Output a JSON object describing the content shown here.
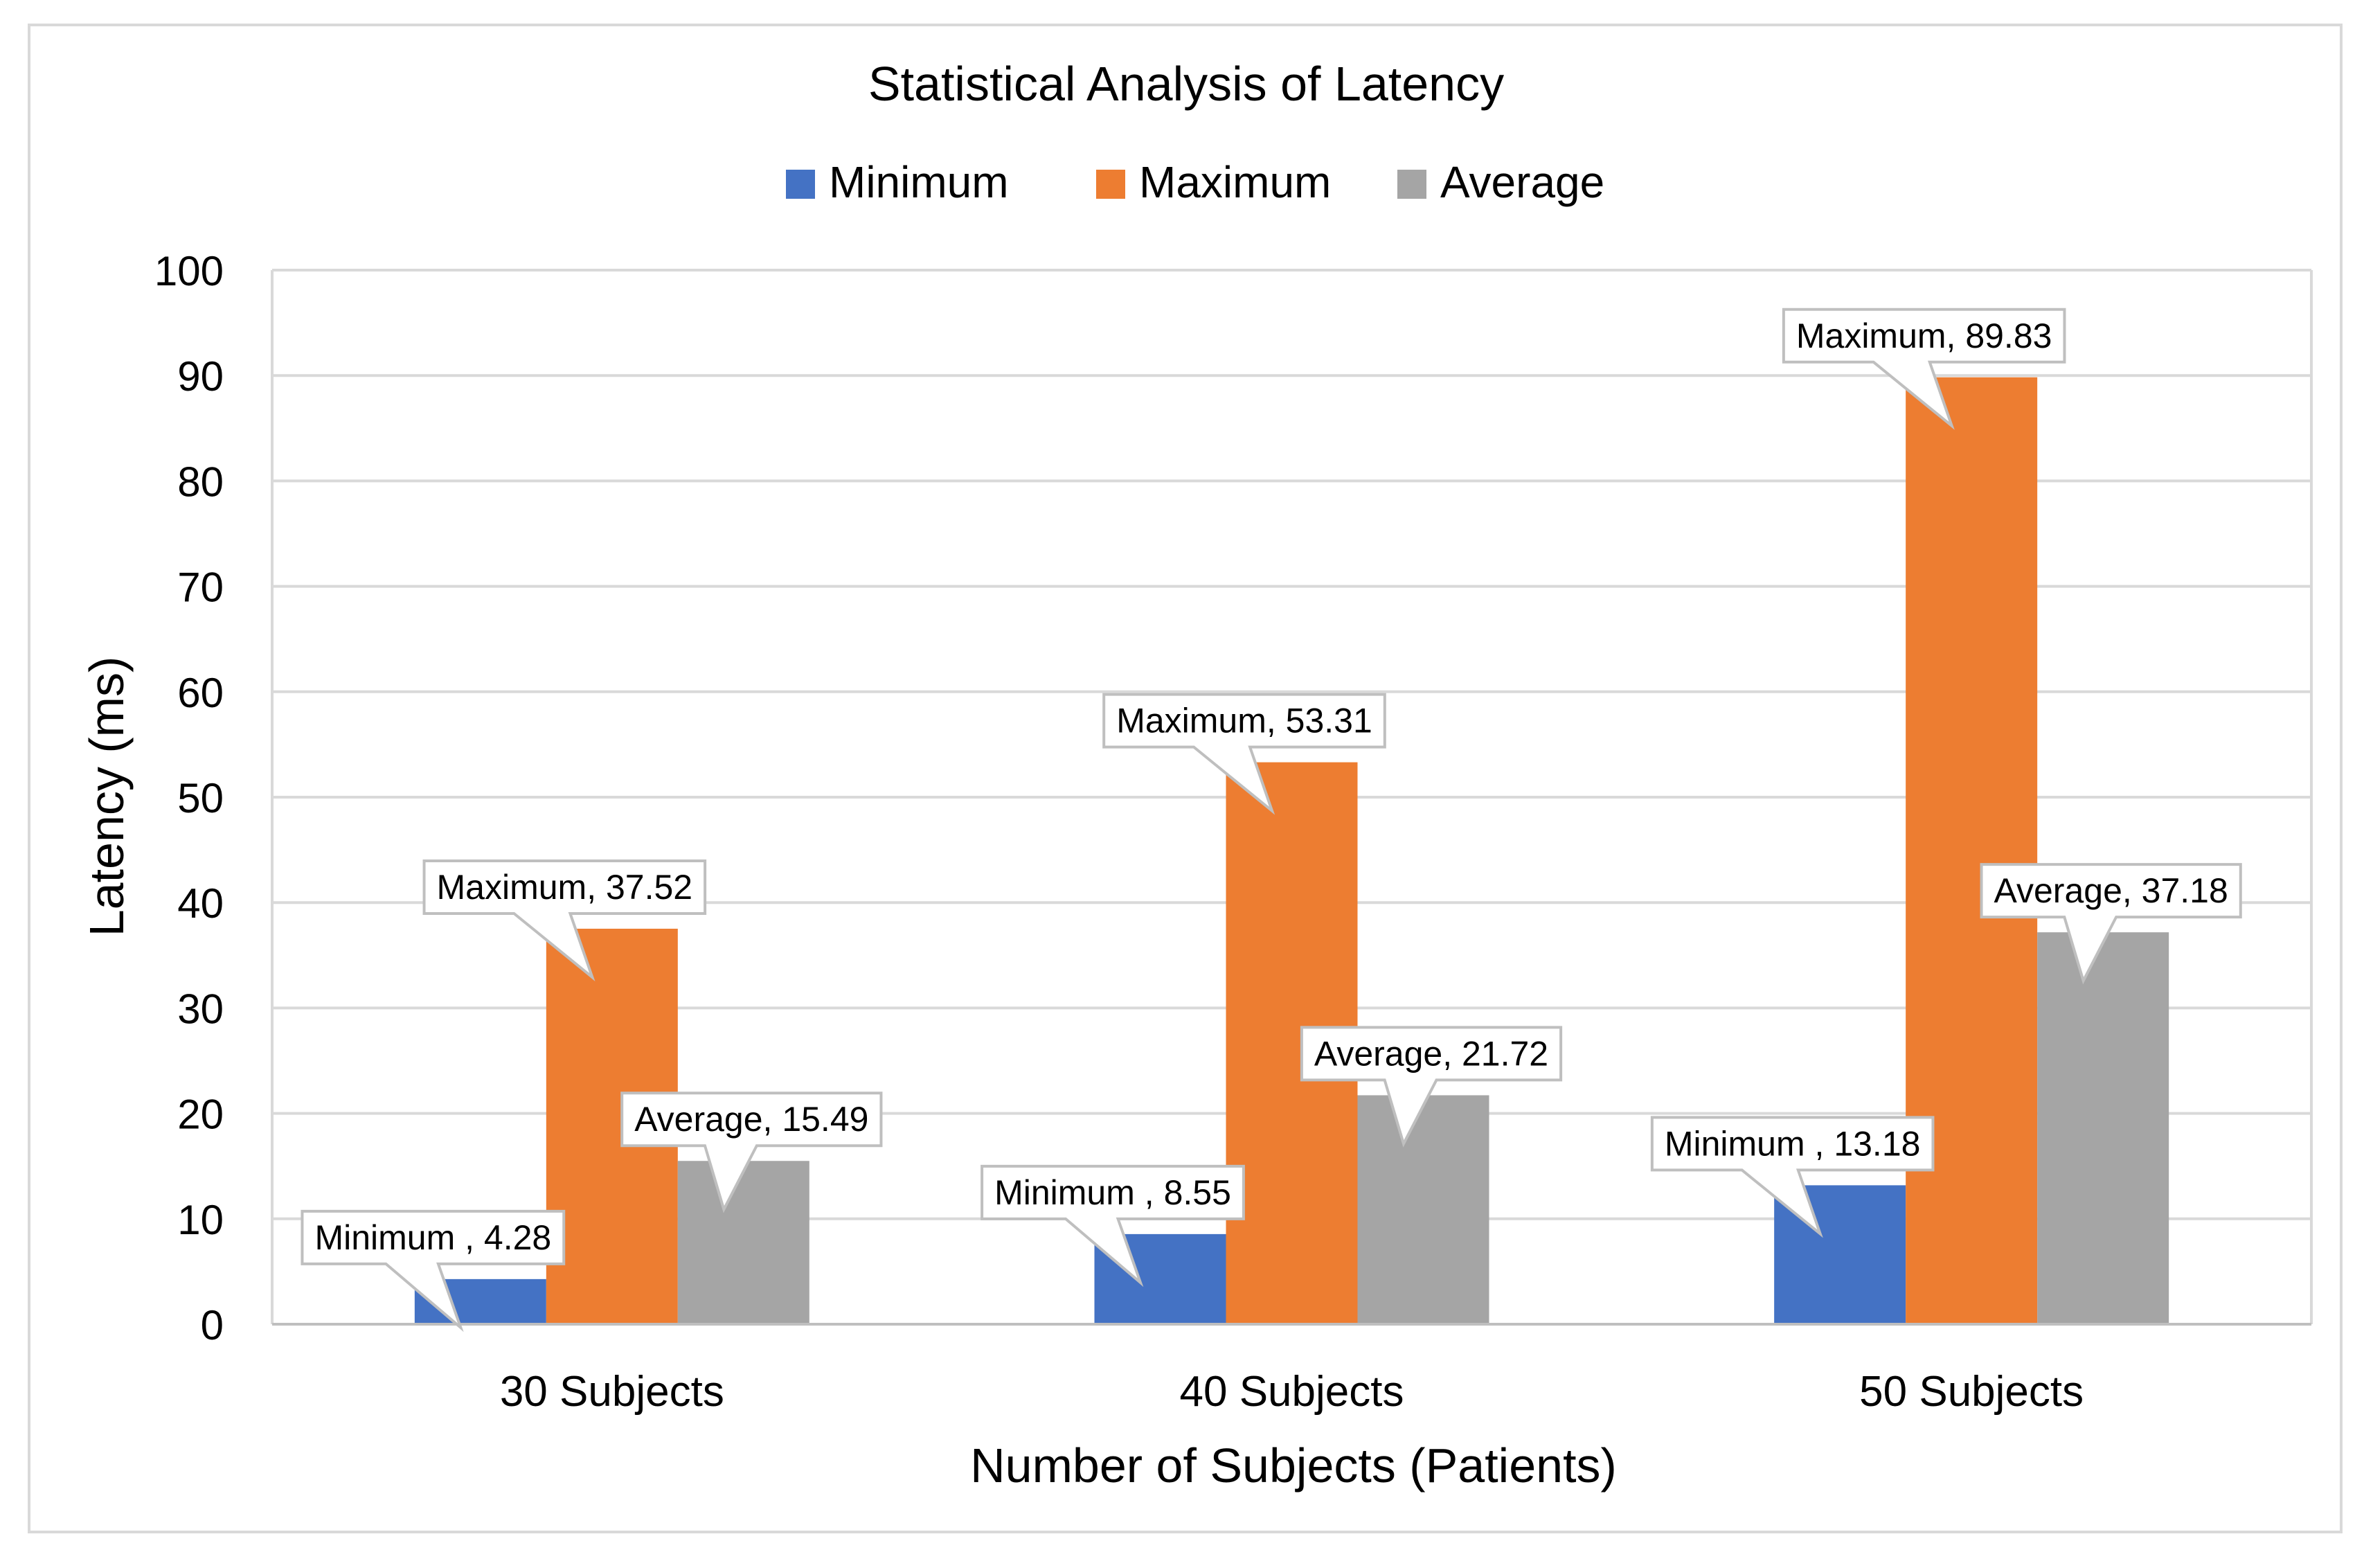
{
  "chart_data": {
    "type": "bar",
    "title": "Statistical Analysis of Latency",
    "xlabel": "Number of Subjects (Patients)",
    "ylabel": "Latency (ms)",
    "ylim": [
      0,
      100
    ],
    "yticks": [
      0,
      10,
      20,
      30,
      40,
      50,
      60,
      70,
      80,
      90,
      100
    ],
    "grid": true,
    "legend_position": "top",
    "categories": [
      "30 Subjects",
      "40 Subjects",
      "50 Subjects"
    ],
    "series": [
      {
        "name": "Minimum",
        "color": "#4472c4",
        "values": [
          4.28,
          8.55,
          13.18
        ],
        "labels": [
          "Minimum , 4.28",
          "Minimum , 8.55",
          "Minimum , 13.18"
        ]
      },
      {
        "name": "Maximum",
        "color": "#ed7d31",
        "values": [
          37.52,
          53.31,
          89.83
        ],
        "labels": [
          "Maximum, 37.52",
          "Maximum, 53.31",
          "Maximum, 89.83"
        ]
      },
      {
        "name": "Average",
        "color": "#a5a5a5",
        "values": [
          15.49,
          21.72,
          37.18
        ],
        "labels": [
          "Average, 15.49",
          "Average, 21.72",
          "Average, 37.18"
        ]
      }
    ]
  }
}
